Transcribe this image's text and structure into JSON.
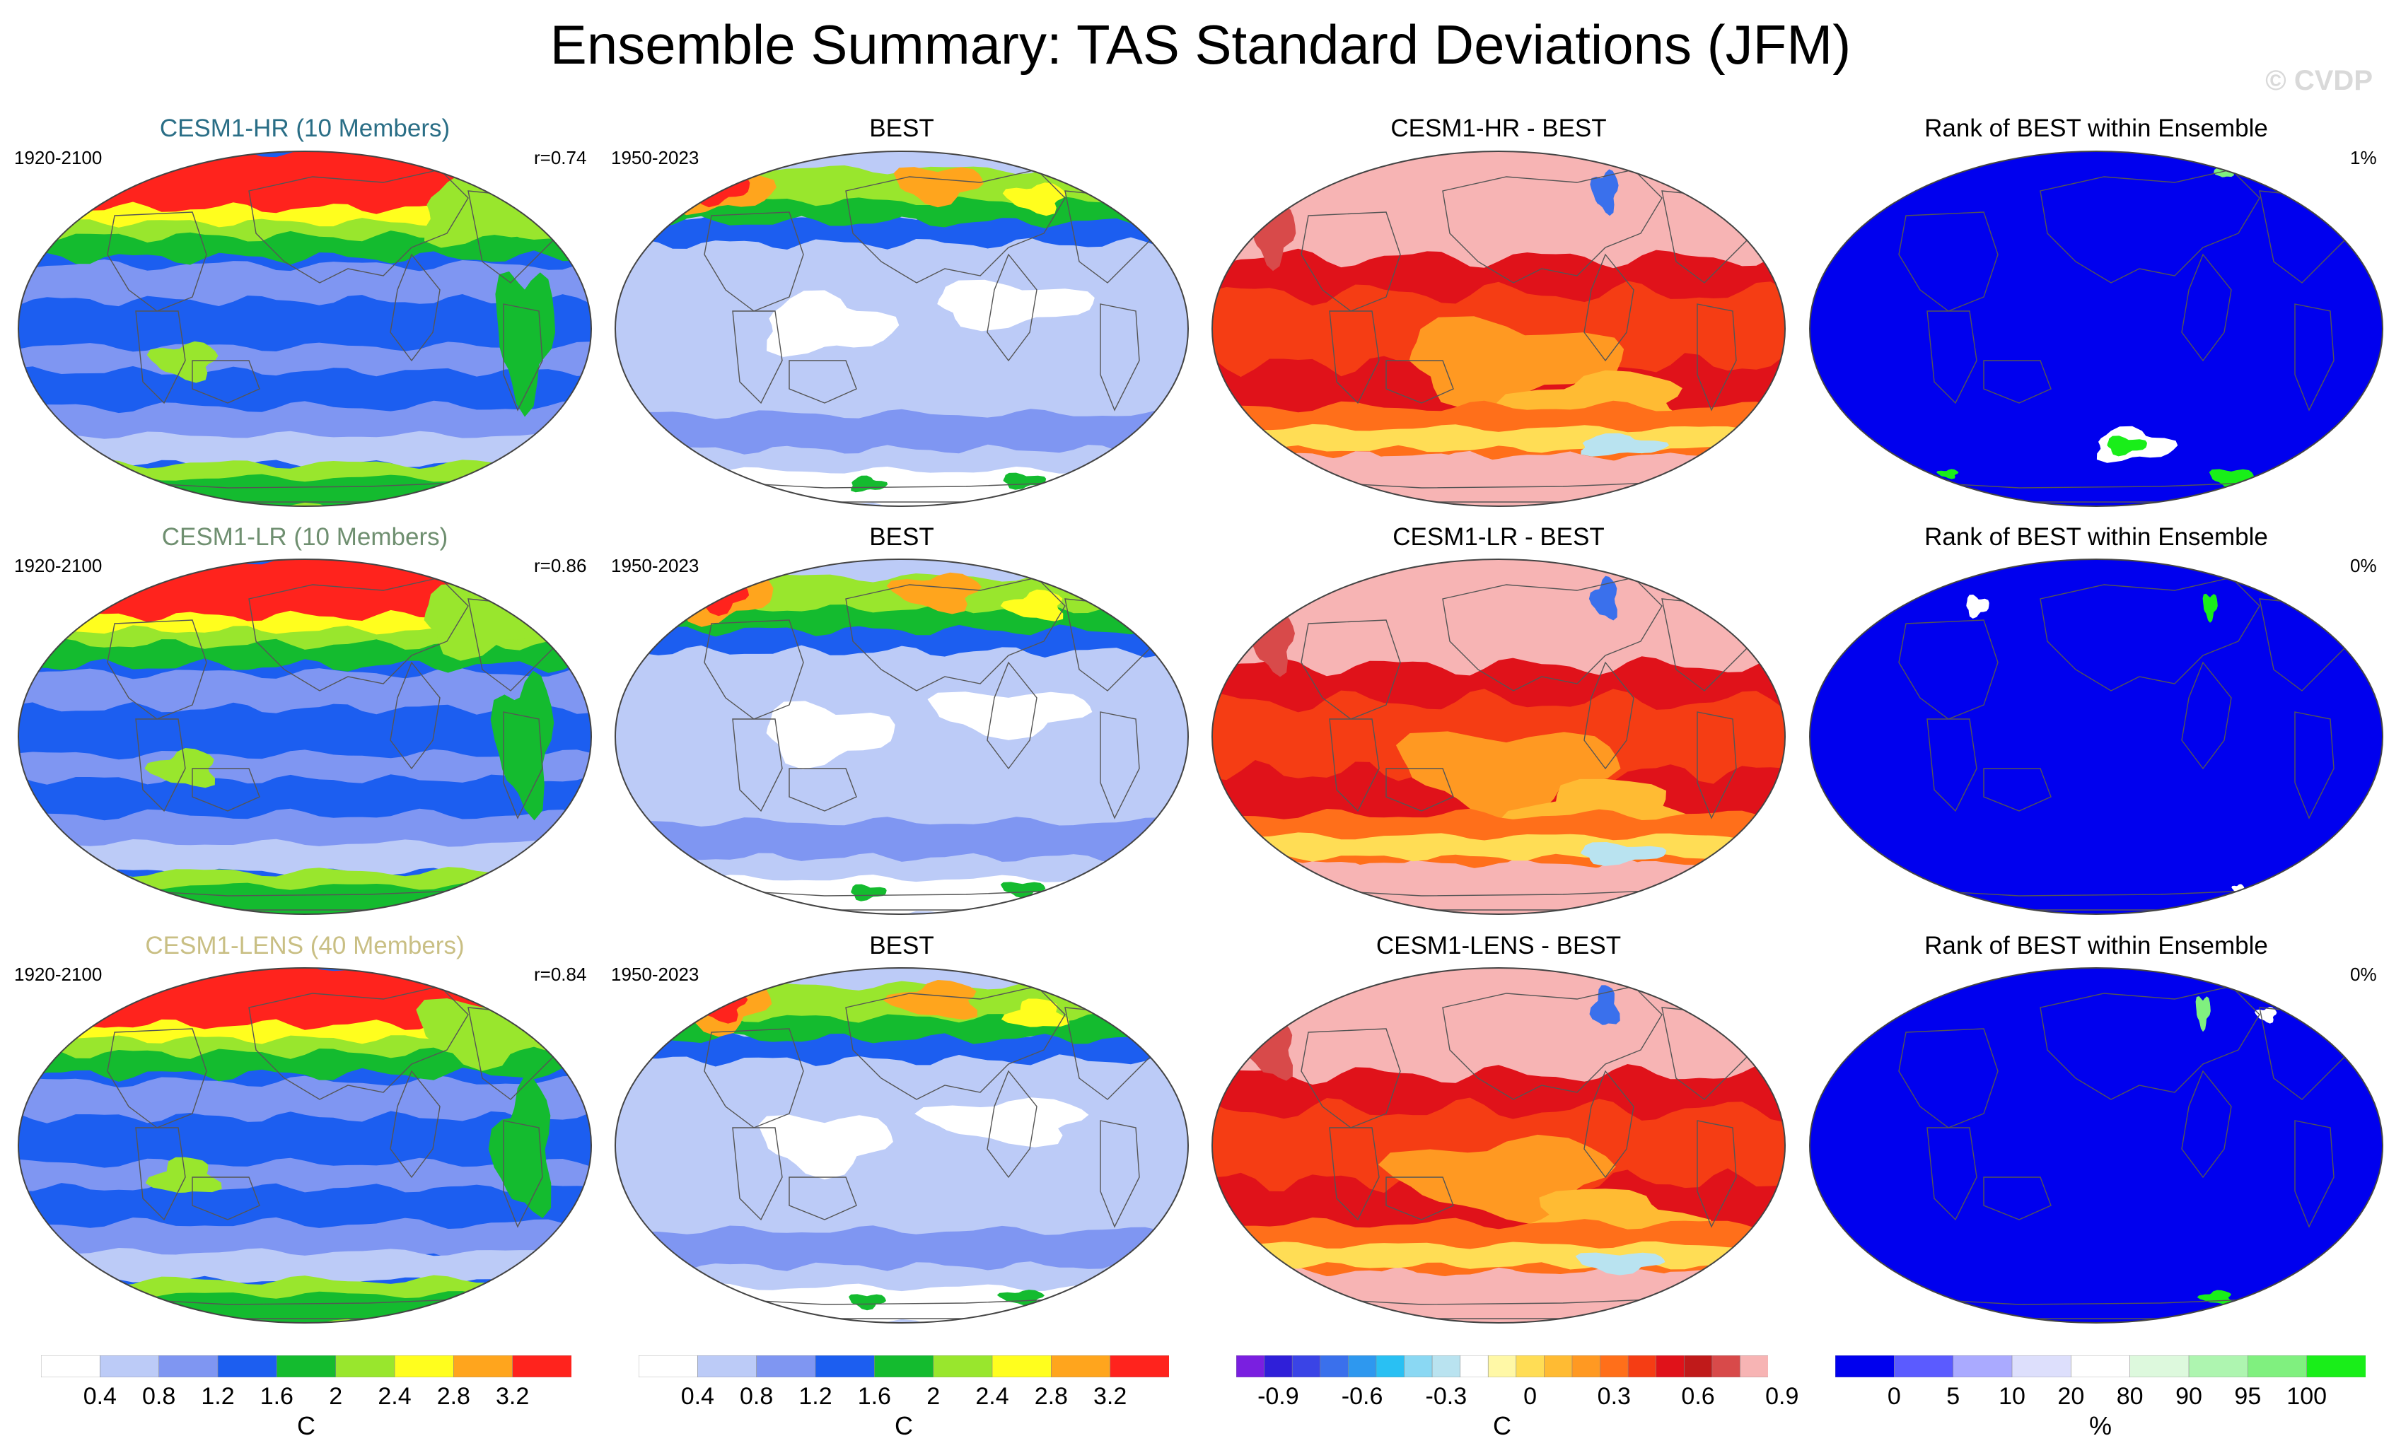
{
  "title": "Ensemble Summary: TAS Standard Deviations (JFM)",
  "watermark": "© CVDP",
  "rows": [
    {
      "model": {
        "title": "CESM1-HR (10 Members)",
        "title_color": "#2a6e86",
        "years": "1920-2100",
        "corr": "r=0.74"
      },
      "obs": {
        "title": "BEST",
        "years": "1950-2023"
      },
      "diff": {
        "title": "CESM1-HR - BEST"
      },
      "rank": {
        "title": "Rank of BEST within Ensemble",
        "pct": "1%"
      }
    },
    {
      "model": {
        "title": "CESM1-LR (10 Members)",
        "title_color": "#6f8f70",
        "years": "1920-2100",
        "corr": "r=0.86"
      },
      "obs": {
        "title": "BEST",
        "years": "1950-2023"
      },
      "diff": {
        "title": "CESM1-LR - BEST"
      },
      "rank": {
        "title": "Rank of BEST within Ensemble",
        "pct": "0%"
      }
    },
    {
      "model": {
        "title": "CESM1-LENS (40 Members)",
        "title_color": "#c9bf84",
        "years": "1920-2100",
        "corr": "r=0.84"
      },
      "obs": {
        "title": "BEST",
        "years": "1950-2023"
      },
      "diff": {
        "title": "CESM1-LENS - BEST"
      },
      "rank": {
        "title": "Rank of BEST within Ensemble",
        "pct": "0%"
      }
    }
  ],
  "colorbars": {
    "sd": {
      "colors": [
        "#ffffff",
        "#bccbf7",
        "#7f96f2",
        "#1c5ef0",
        "#14bb2f",
        "#99e62d",
        "#fffe1e",
        "#ffa51d",
        "#ff231d"
      ],
      "ticks": [
        "0.4",
        "0.8",
        "1.2",
        "1.6",
        "2",
        "2.4",
        "2.8",
        "3.2"
      ],
      "unit": "C"
    },
    "diff": {
      "colors": [
        "#7a1fe0",
        "#2f1fd9",
        "#3a44e6",
        "#3a70ec",
        "#2e98ef",
        "#29c0f3",
        "#8ad8f3",
        "#b9e3f0",
        "#ffffff",
        "#fff8a6",
        "#ffdd55",
        "#ffbb33",
        "#ff9922",
        "#ff6f1a",
        "#f53d14",
        "#e0121a",
        "#c01a1a",
        "#d84a4a",
        "#f7b4b4"
      ],
      "ticks": [
        "-0.9",
        "-0.6",
        "-0.3",
        "0",
        "0.3",
        "0.6",
        "0.9"
      ],
      "unit": "C"
    },
    "rank": {
      "colors": [
        "#0000ee",
        "#5b5bff",
        "#aaaaff",
        "#dddffc",
        "#ffffff",
        "#ddf9dd",
        "#aef5b0",
        "#80f07f",
        "#19ee19"
      ],
      "ticks": [
        "0",
        "5",
        "10",
        "20",
        "80",
        "90",
        "95",
        "100"
      ],
      "unit": "%"
    }
  },
  "palette": {
    "sd_levels": [
      "#ffffff",
      "#bccbf7",
      "#7f96f2",
      "#1c5ef0",
      "#14bb2f",
      "#99e62d",
      "#fffe1e",
      "#ffa51d",
      "#ff231d"
    ],
    "coast": "#555555"
  }
}
